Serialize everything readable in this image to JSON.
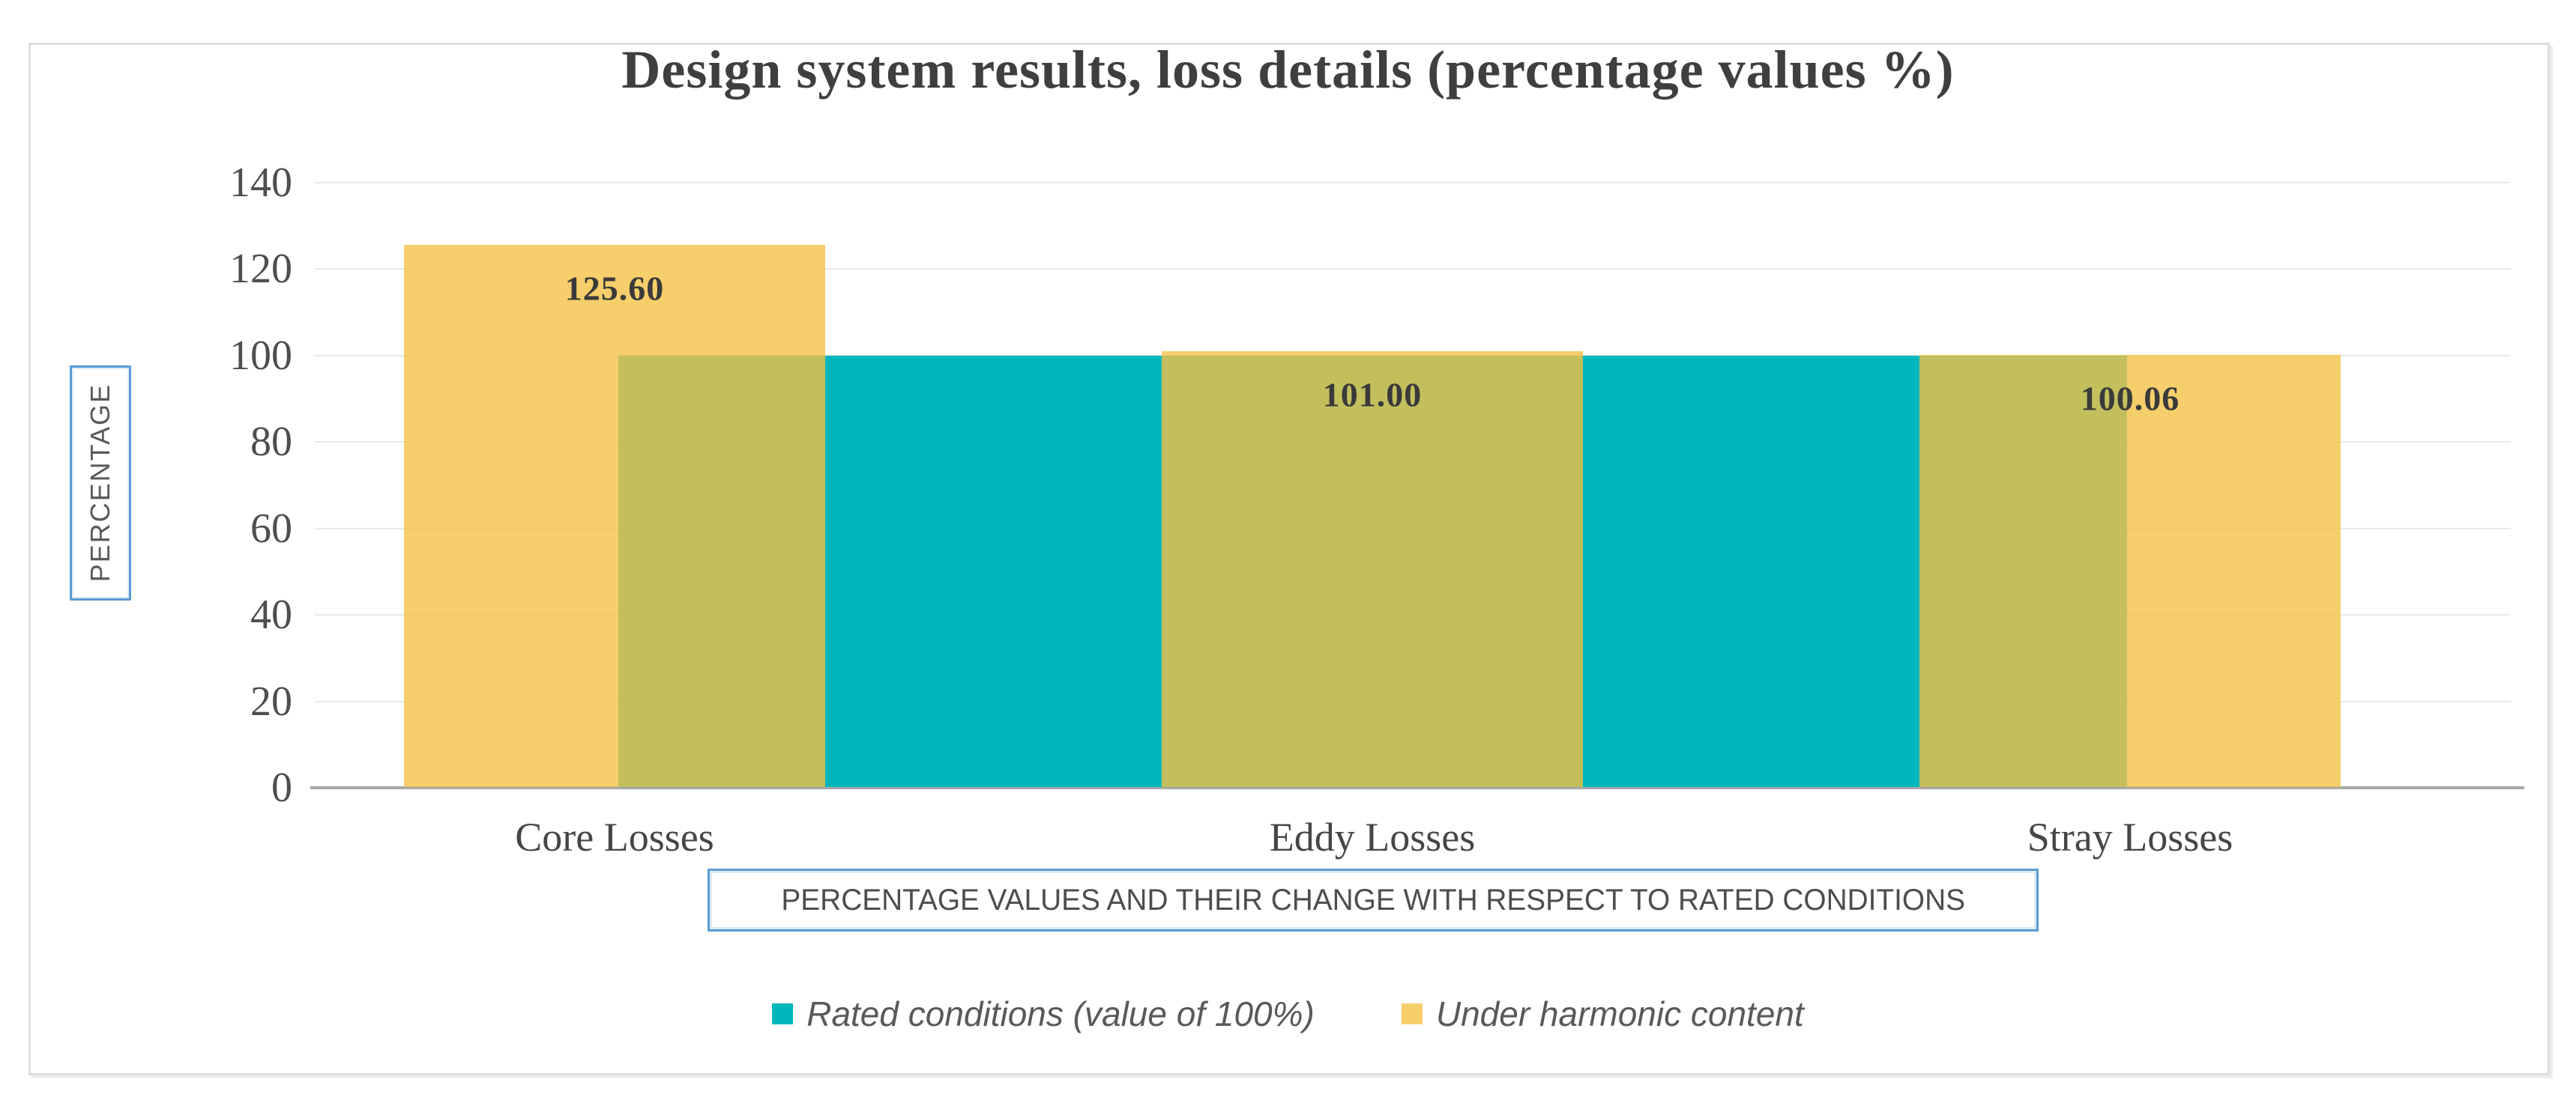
{
  "chart_data": {
    "type": "bar",
    "title": "Design system results, loss details (percentage values %)",
    "categories": [
      "Core Losses",
      "Eddy Losses",
      "Stray Losses"
    ],
    "series": [
      {
        "name": "Rated conditions (value of 100%)",
        "color": "#00b6bb",
        "opacity": 1,
        "values": [
          100,
          100,
          100
        ]
      },
      {
        "name": "Under harmonic content",
        "color": "#f4c246",
        "opacity": 0.8,
        "values": [
          125.6,
          101.0,
          100.06
        ]
      }
    ],
    "data_labels": [
      "125.60",
      "101.00",
      "100.06"
    ],
    "data_label_series": "Under harmonic content",
    "ylabel": "PERCENTAGE",
    "xlabel": "PERCENTAGE VALUES AND THEIR CHANGE WITH RESPECT TO RATED CONDITIONS",
    "ylim": [
      0,
      140
    ],
    "ytick_step": 20,
    "yticks": [
      "0",
      "20",
      "40",
      "60",
      "80",
      "100",
      "120",
      "140"
    ],
    "grid": true,
    "legend_position": "bottom",
    "overlap_color_rendered": "#c4c05d",
    "yellow_rendered_on_white": "#f6ce6a"
  },
  "title": {
    "text": "Design system results, loss details (percentage values %)"
  },
  "axis_titles": {
    "y": "PERCENTAGE",
    "x": "PERCENTAGE VALUES AND THEIR CHANGE WITH RESPECT TO RATED CONDITIONS"
  },
  "legend": {
    "items": [
      {
        "label": "Rated conditions (value of 100%)",
        "color": "#00b6bb"
      },
      {
        "label": "Under harmonic content",
        "color": "#f6ce6a"
      }
    ]
  },
  "colors": {
    "teal": "#00b6bb",
    "yellow_translucent_base": "#f4c246",
    "yellow_on_white": "#f6ce6a",
    "olive_overlap": "#c4c05d",
    "accent_blue_border": "#5b9bd5",
    "axis_line": "#a8a8a8",
    "gridline": "#e9e9e9",
    "text_dark": "#3f3f3f"
  }
}
